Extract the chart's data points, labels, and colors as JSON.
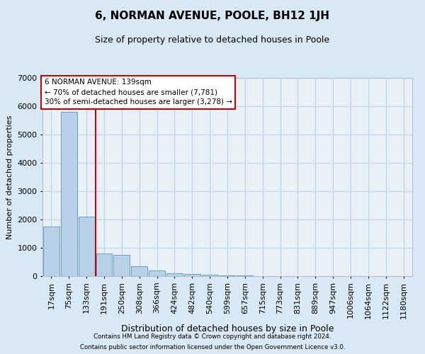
{
  "title": "6, NORMAN AVENUE, POOLE, BH12 1JH",
  "subtitle": "Size of property relative to detached houses in Poole",
  "xlabel": "Distribution of detached houses by size in Poole",
  "ylabel": "Number of detached properties",
  "footer_line1": "Contains HM Land Registry data © Crown copyright and database right 2024.",
  "footer_line2": "Contains public sector information licensed under the Open Government Licence v3.0.",
  "annotation_line1": "6 NORMAN AVENUE: 139sqm",
  "annotation_line2": "← 70% of detached houses are smaller (7,781)",
  "annotation_line3": "30% of semi-detached houses are larger (3,278) →",
  "bar_labels": [
    "17sqm",
    "75sqm",
    "133sqm",
    "191sqm",
    "250sqm",
    "308sqm",
    "366sqm",
    "424sqm",
    "482sqm",
    "540sqm",
    "599sqm",
    "657sqm",
    "715sqm",
    "773sqm",
    "831sqm",
    "889sqm",
    "947sqm",
    "1006sqm",
    "1064sqm",
    "1122sqm",
    "1180sqm"
  ],
  "bar_values": [
    1750,
    5800,
    2100,
    800,
    740,
    340,
    195,
    100,
    78,
    58,
    25,
    18,
    8,
    5,
    3,
    2,
    1,
    1,
    0,
    0,
    0
  ],
  "bar_color": "#b8d0e8",
  "bar_edge_color": "#6a9ec5",
  "red_line_x": 2.5,
  "ylim": [
    0,
    7000
  ],
  "yticks": [
    0,
    1000,
    2000,
    3000,
    4000,
    5000,
    6000,
    7000
  ],
  "annotation_box_facecolor": "#ffffff",
  "annotation_box_edgecolor": "#cc0000",
  "red_line_color": "#cc0000",
  "grid_color": "#c0d4e8",
  "bg_color": "#d8e8f4",
  "plot_bg_color": "#e8f0f8",
  "title_fontsize": 11,
  "subtitle_fontsize": 9
}
